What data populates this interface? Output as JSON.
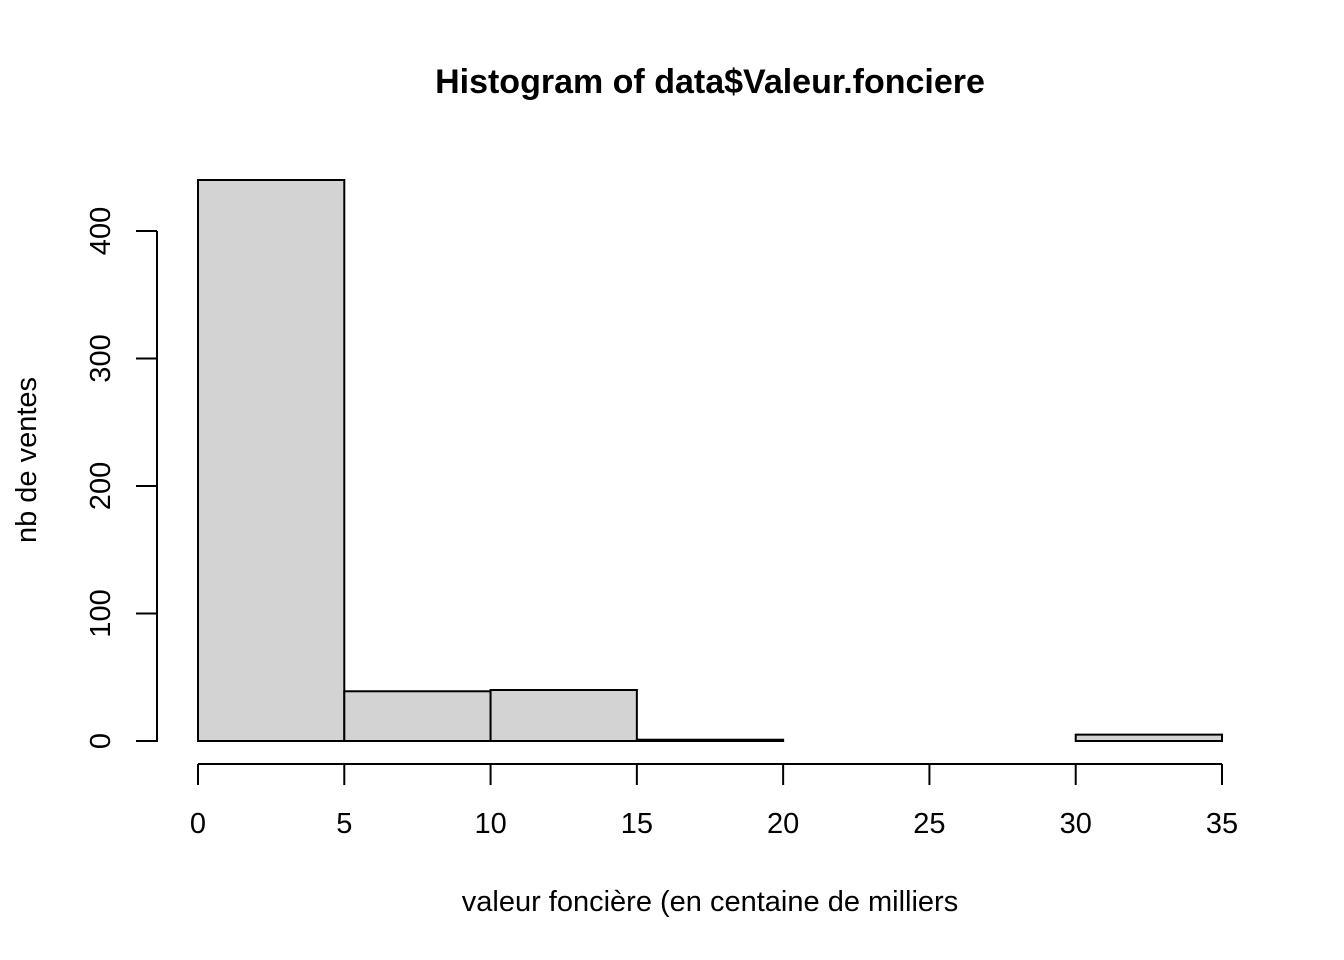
{
  "chart_data": {
    "type": "bar",
    "title": "Histogram of data$Valeur.fonciere",
    "xlabel": "valeur foncière (en centaine de milliers",
    "ylabel": "nb de ventes",
    "bins": [
      {
        "from": 0,
        "to": 5,
        "count": 440
      },
      {
        "from": 5,
        "to": 10,
        "count": 39
      },
      {
        "from": 10,
        "to": 15,
        "count": 40
      },
      {
        "from": 15,
        "to": 20,
        "count": 1
      },
      {
        "from": 20,
        "to": 25,
        "count": 0
      },
      {
        "from": 25,
        "to": 30,
        "count": 0
      },
      {
        "from": 30,
        "to": 35,
        "count": 5
      }
    ],
    "xlim": [
      0,
      35
    ],
    "ylim": [
      0,
      440
    ],
    "xticks": [
      0,
      5,
      10,
      15,
      20,
      25,
      30,
      35
    ],
    "yticks": [
      0,
      100,
      200,
      300,
      400
    ],
    "grid": false,
    "bar_color": "#d3d3d3",
    "bar_border_color": "#000000"
  }
}
